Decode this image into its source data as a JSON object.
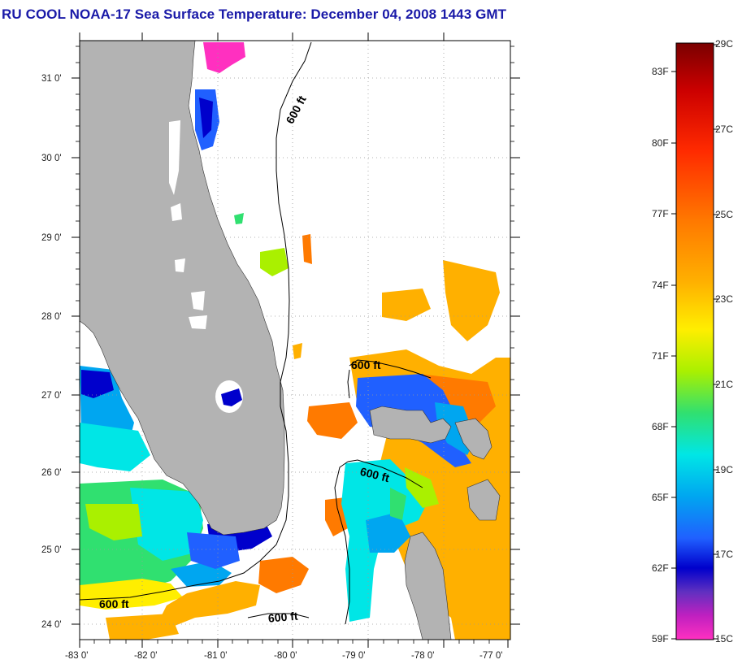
{
  "title": "RU COOL  NOAA-17  Sea Surface Temperature:  December 04, 2008 1443 GMT",
  "map": {
    "lat_labels": [
      "31 0'",
      "30 0'",
      "29 0'",
      "28 0'",
      "27 0'",
      "26 0'",
      "25 0'",
      "24 0'"
    ],
    "lon_labels": [
      "-83 0'",
      "-82 0'",
      "-81 0'",
      "-80 0'",
      "-79 0'",
      "-78 0'",
      "-77 0'"
    ],
    "contour_labels": [
      "600 ft",
      "600 ft",
      "600 ft",
      "600 ft",
      "600 ft"
    ],
    "land_color": "#b3b3b3"
  },
  "colorbar": {
    "fahrenheit_labels": [
      "83F",
      "80F",
      "77F",
      "74F",
      "71F",
      "68F",
      "65F",
      "62F",
      "59F"
    ],
    "celsius_labels": [
      "29C",
      "27C",
      "25C",
      "23C",
      "21C",
      "19C",
      "17C",
      "15C"
    ],
    "gradient_colors": [
      "#7a0000",
      "#cc0000",
      "#ff2a00",
      "#ff7a00",
      "#ffb000",
      "#ffee00",
      "#aaf000",
      "#30e070",
      "#00e6e6",
      "#00a6f0",
      "#2060ff",
      "#0000cc",
      "#6030c0",
      "#c020c0",
      "#ff30c0"
    ]
  }
}
